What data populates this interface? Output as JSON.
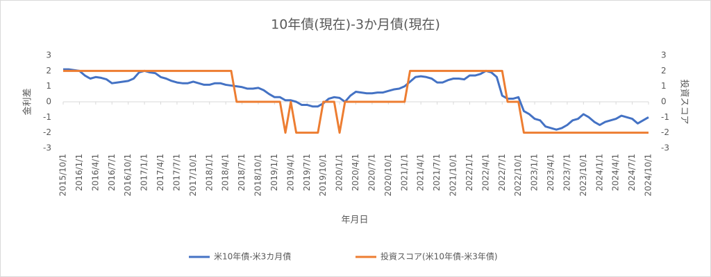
{
  "chart_data": {
    "type": "line",
    "title": "10年債(現在)-3か月債(現在)",
    "x_label": "年月日",
    "y_label": "金利差",
    "y2_label": "投資スコア",
    "categories": [
      "2015/10/1",
      null,
      null,
      "2016/1/1",
      null,
      null,
      "2016/4/1",
      null,
      null,
      "2016/7/1",
      null,
      null,
      "2016/10/1",
      null,
      null,
      "2017/1/1",
      null,
      null,
      "2017/4/1",
      null,
      null,
      "2017/7/1",
      null,
      null,
      "2017/10/1",
      null,
      null,
      "2018/1/1",
      null,
      null,
      "2018/4/1",
      null,
      null,
      "2018/7/1",
      null,
      null,
      "2018/10/1",
      null,
      null,
      "2019/1/1",
      null,
      null,
      "2019/4/1",
      null,
      null,
      "2019/7/1",
      null,
      null,
      "2019/10/1",
      null,
      null,
      "2020/1/1",
      null,
      null,
      "2020/4/1",
      null,
      null,
      "2020/7/1",
      null,
      null,
      "2020/10/1",
      null,
      null,
      "2021/1/1",
      null,
      null,
      "2021/4/1",
      null,
      null,
      "2021/7/1",
      null,
      null,
      "2021/10/1",
      null,
      null,
      "2022/1/1",
      null,
      null,
      "2022/4/1",
      null,
      null,
      "2022/7/1",
      null,
      null,
      "2022/10/1",
      null,
      null,
      "2023/1/1",
      null,
      null,
      "2023/4/1",
      null,
      null,
      "2023/7/1",
      null,
      null,
      "2023/10/1",
      null,
      null,
      "2024/1/1",
      null,
      null,
      "2024/4/1",
      null,
      null,
      "2024/7/1",
      null,
      null,
      "2024/10/1"
    ],
    "series": [
      {
        "name": "米10年債-米3カ月債",
        "color": "#4472c4",
        "values": [
          2.1,
          2.1,
          2.05,
          2.0,
          1.7,
          1.5,
          1.6,
          1.55,
          1.45,
          1.2,
          1.25,
          1.3,
          1.35,
          1.5,
          1.9,
          2.0,
          1.9,
          1.85,
          1.6,
          1.5,
          1.35,
          1.25,
          1.2,
          1.2,
          1.3,
          1.2,
          1.1,
          1.1,
          1.2,
          1.2,
          1.1,
          1.05,
          1.0,
          0.95,
          0.85,
          0.85,
          0.9,
          0.75,
          0.5,
          0.3,
          0.3,
          0.1,
          0.1,
          0.0,
          -0.2,
          -0.2,
          -0.3,
          -0.3,
          -0.1,
          0.2,
          0.3,
          0.25,
          0.0,
          0.4,
          0.65,
          0.6,
          0.55,
          0.55,
          0.6,
          0.6,
          0.7,
          0.8,
          0.85,
          1.0,
          1.3,
          1.6,
          1.65,
          1.6,
          1.5,
          1.25,
          1.25,
          1.4,
          1.5,
          1.5,
          1.45,
          1.7,
          1.7,
          1.8,
          2.0,
          1.9,
          1.6,
          0.4,
          0.2,
          0.2,
          0.3,
          -0.6,
          -0.8,
          -1.1,
          -1.2,
          -1.6,
          -1.7,
          -1.8,
          -1.7,
          -1.5,
          -1.2,
          -1.1,
          -0.8,
          -1.0,
          -1.3,
          -1.5,
          -1.3,
          -1.2,
          -1.1,
          -0.9,
          -1.0,
          -1.1,
          -1.4,
          -1.2,
          -1.0
        ]
      },
      {
        "name": "投資スコア(米10年債-米3年債)",
        "color": "#ed7d31",
        "axis": "y2",
        "values": [
          2,
          2,
          2,
          2,
          2,
          2,
          2,
          2,
          2,
          2,
          2,
          2,
          2,
          2,
          2,
          2,
          2,
          2,
          2,
          2,
          2,
          2,
          2,
          2,
          2,
          2,
          2,
          2,
          2,
          2,
          2,
          2,
          0,
          0,
          0,
          0,
          0,
          0,
          0,
          0,
          0,
          -2,
          0,
          -2,
          -2,
          -2,
          -2,
          -2,
          0,
          0,
          0,
          -2,
          0,
          0,
          0,
          0,
          0,
          0,
          0,
          0,
          0,
          0,
          0,
          0,
          2,
          2,
          2,
          2,
          2,
          2,
          2,
          2,
          2,
          2,
          2,
          2,
          2,
          2,
          2,
          2,
          2,
          2,
          0,
          0,
          0,
          -2,
          -2,
          -2,
          -2,
          -2,
          -2,
          -2,
          -2,
          -2,
          -2,
          -2,
          -2,
          -2,
          -2,
          -2,
          -2,
          -2,
          -2,
          -2,
          -2,
          -2,
          -2,
          -2,
          -2
        ]
      }
    ],
    "ylim": [
      -3,
      3
    ],
    "yticks": [
      -3,
      -2,
      -1,
      0,
      1,
      2,
      3
    ],
    "y2lim": [
      -3,
      3
    ],
    "y2ticks": [
      -3,
      -2,
      -1,
      0,
      1,
      2,
      3
    ],
    "legend": "bottom"
  }
}
